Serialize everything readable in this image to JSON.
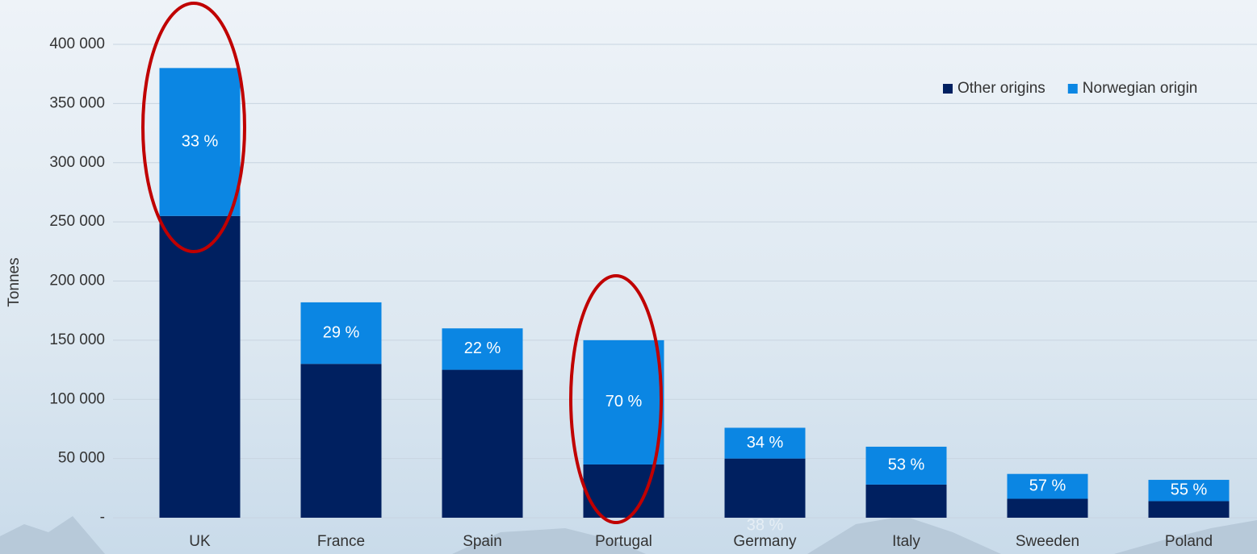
{
  "chart_data": {
    "type": "stacked_bar",
    "y_axis_label": "Tonnes",
    "categories": [
      "UK",
      "France",
      "Spain",
      "Portugal",
      "Germany",
      "Italy",
      "Sweeden",
      "Poland"
    ],
    "series": [
      {
        "name": "Other origins",
        "color": "#002060",
        "values": [
          255000,
          130000,
          125000,
          45000,
          50000,
          28000,
          16000,
          14000
        ]
      },
      {
        "name": "Norwegian origin",
        "color": "#0b86e3",
        "values": [
          125000,
          52000,
          35000,
          105000,
          26000,
          32000,
          21000,
          18000
        ]
      }
    ],
    "share_labels": [
      "33 %",
      "29 %",
      "22 %",
      "70 %",
      "34 %",
      "53 %",
      "57 %",
      "55 %"
    ],
    "annotation": "38 %",
    "ylim": [
      0,
      400000
    ],
    "yticks": [
      {
        "value": 0,
        "label": "-"
      },
      {
        "value": 50000,
        "label": "50 000"
      },
      {
        "value": 100000,
        "label": "100 000"
      },
      {
        "value": 150000,
        "label": "150 000"
      },
      {
        "value": 200000,
        "label": "200 000"
      },
      {
        "value": 250000,
        "label": "250 000"
      },
      {
        "value": 300000,
        "label": "300 000"
      },
      {
        "value": 350000,
        "label": "350 000"
      },
      {
        "value": 400000,
        "label": "400 000"
      }
    ],
    "grid": true,
    "legend": "top-right"
  }
}
